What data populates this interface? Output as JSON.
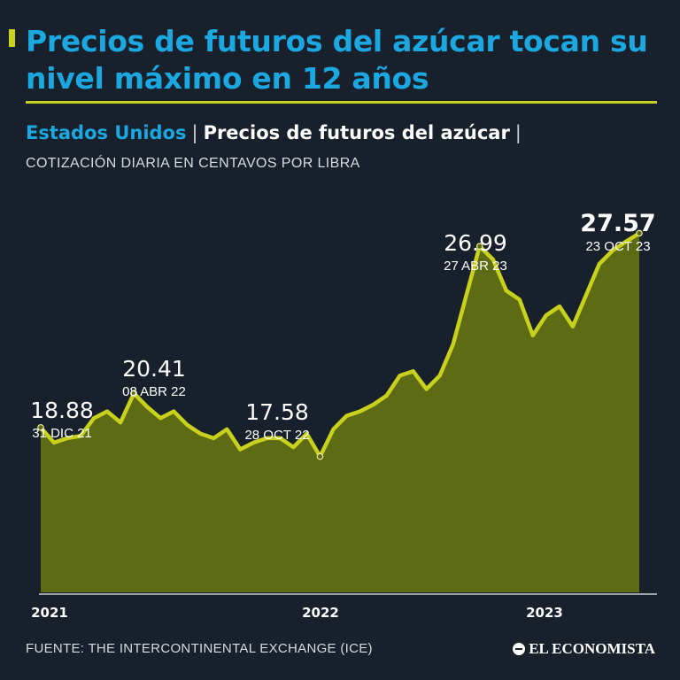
{
  "header": {
    "title": "Precios de futuros del azúcar tocan su nivel máximo en 12 años",
    "country": "Estados Unidos",
    "separator": "|",
    "series_title": "Precios de futuros del azúcar",
    "unit": "COTIZACIÓN DIARIA EN CENTAVOS POR LIBRA"
  },
  "footer": {
    "source": "FUENTE: THE INTERCONTINENTAL EXCHANGE (ICE)",
    "logo": "EL ECONOMISTA"
  },
  "colors": {
    "background": "#17202b",
    "title": "#1ba7e0",
    "line": "#c8d21c",
    "area": "#5d6b14"
  },
  "chart_data": {
    "type": "area",
    "title": "Precios de futuros del azúcar",
    "ylabel": "",
    "xlabel": "",
    "x_ticks": [
      "2021",
      "2022",
      "2023"
    ],
    "x": [
      "31 DIC 21",
      "15 ENE 22",
      "31 ENE 22",
      "15 FEB 22",
      "28 FEB 22",
      "15 MAR 22",
      "31 MAR 22",
      "08 ABR 22",
      "15 ABR 22",
      "30 ABR 22",
      "15 MAY 22",
      "31 MAY 22",
      "15 JUN 22",
      "30 JUN 22",
      "15 JUL 22",
      "31 JUL 22",
      "15 AGO 22",
      "31 AGO 22",
      "15 SEP 22",
      "30 SEP 22",
      "15 OCT 22",
      "28 OCT 22",
      "15 NOV 22",
      "30 NOV 22",
      "15 DIC 22",
      "31 DIC 22",
      "15 ENE 23",
      "31 ENE 23",
      "15 FEB 23",
      "28 FEB 23",
      "15 MAR 23",
      "31 MAR 23",
      "15 ABR 23",
      "27 ABR 23",
      "15 MAY 23",
      "31 MAY 23",
      "15 JUN 23",
      "30 JUN 23",
      "15 JUL 23",
      "31 JUL 23",
      "15 AGO 23",
      "31 AGO 23",
      "15 SEP 23",
      "30 SEP 23",
      "15 OCT 23",
      "23 OCT 23"
    ],
    "series": [
      {
        "values": [
          18.88,
          18.2,
          18.4,
          18.5,
          19.3,
          19.6,
          19.1,
          20.41,
          19.8,
          19.3,
          19.6,
          19.0,
          18.6,
          18.4,
          18.8,
          17.9,
          18.2,
          18.4,
          18.4,
          18.0,
          18.6,
          17.58,
          18.8,
          19.4,
          19.6,
          19.9,
          20.3,
          21.2,
          21.4,
          20.6,
          21.2,
          22.6,
          24.8,
          26.99,
          26.4,
          25.0,
          24.6,
          23.0,
          23.9,
          24.3,
          23.4,
          24.8,
          26.2,
          26.8,
          27.2,
          27.57
        ]
      }
    ],
    "ylim": [
      11.5,
      28.5
    ],
    "annotations": [
      {
        "index": 0,
        "value": "18.88",
        "date": "31 DIC 21"
      },
      {
        "index": 7,
        "value": "20.41",
        "date": "08 ABR 22"
      },
      {
        "index": 21,
        "value": "17.58",
        "date": "28 OCT 22"
      },
      {
        "index": 33,
        "value": "26.99",
        "date": "27 ABR 23"
      },
      {
        "index": 45,
        "value": "27.57",
        "date": "23 OCT 23",
        "emphasis": true
      }
    ]
  }
}
